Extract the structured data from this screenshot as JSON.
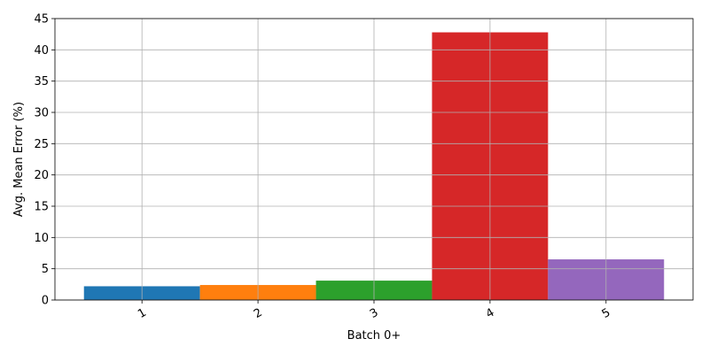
{
  "chart_data": {
    "type": "bar",
    "categories": [
      "1",
      "2",
      "3",
      "4",
      "5"
    ],
    "values": [
      2.2,
      2.4,
      3.1,
      42.8,
      6.5
    ],
    "colors": [
      "#1f77b4",
      "#ff7f0e",
      "#2ca02c",
      "#d62728",
      "#9467bd"
    ],
    "xlabel": "Batch 0+",
    "ylabel": "Avg. Mean Error (%)",
    "ylim": [
      0,
      45
    ],
    "yticks": [
      0,
      5,
      10,
      15,
      20,
      25,
      30,
      35,
      40,
      45
    ],
    "grid": true,
    "xtick_rotation_deg": -30
  }
}
